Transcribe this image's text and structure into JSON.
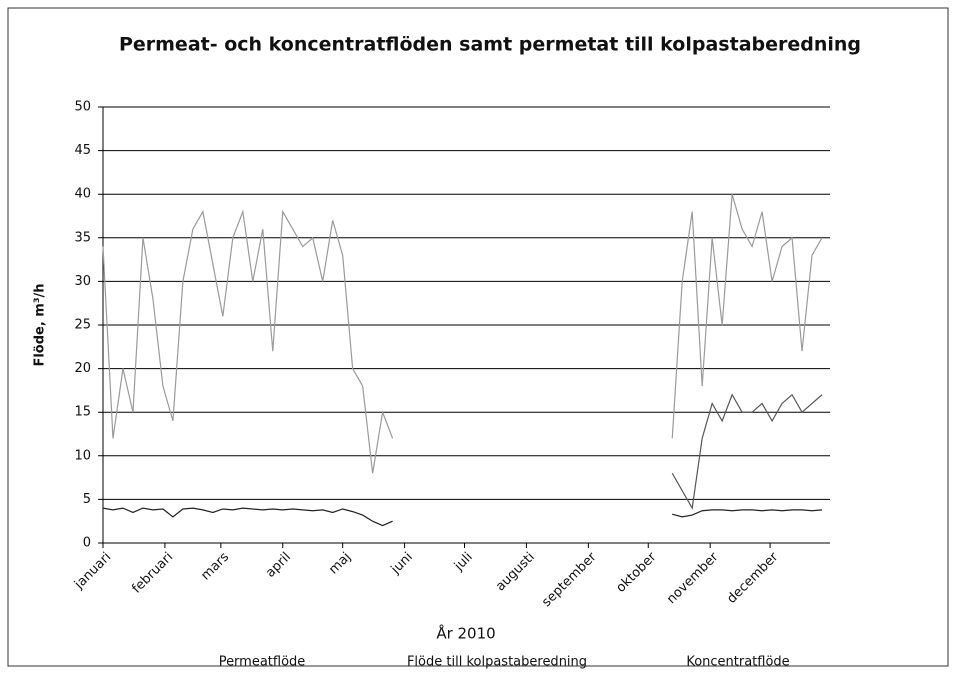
{
  "chart_data": {
    "type": "line",
    "title": "Permeat- och koncentratflöden samt permetat till kolpastaberedning",
    "x_label": "År 2010",
    "y_label": "Flöde, m³/h",
    "x": [
      1,
      6,
      11,
      16,
      21,
      26,
      31,
      36,
      41,
      46,
      51,
      56,
      61,
      66,
      71,
      76,
      81,
      86,
      91,
      96,
      101,
      106,
      111,
      116,
      121,
      126,
      131,
      136,
      141,
      146,
      151,
      156,
      161,
      166,
      171,
      176,
      181,
      186,
      191,
      196,
      201,
      206,
      211,
      216,
      221,
      226,
      231,
      236,
      241,
      246,
      251,
      256,
      261,
      266,
      271,
      276,
      281,
      286,
      291,
      296,
      301,
      306,
      311,
      316,
      321,
      326,
      331,
      336,
      341,
      346,
      351,
      356,
      361
    ],
    "xlim": [
      1,
      365
    ],
    "xticks": [
      {
        "value": 1,
        "label": "januari"
      },
      {
        "value": 32,
        "label": "februari"
      },
      {
        "value": 60,
        "label": "mars"
      },
      {
        "value": 91,
        "label": "april"
      },
      {
        "value": 121,
        "label": "maj"
      },
      {
        "value": 152,
        "label": "juni"
      },
      {
        "value": 182,
        "label": "juli"
      },
      {
        "value": 213,
        "label": "augusti"
      },
      {
        "value": 244,
        "label": "september"
      },
      {
        "value": 274,
        "label": "oktober"
      },
      {
        "value": 305,
        "label": "november"
      },
      {
        "value": 335,
        "label": "december"
      }
    ],
    "ylim": [
      0,
      50
    ],
    "yticks": [
      0,
      5,
      10,
      15,
      20,
      25,
      30,
      35,
      40,
      45,
      50
    ],
    "grid": true,
    "series": [
      {
        "name": "Permeatflöde",
        "color": "#9a9a9a",
        "values": [
          34,
          12,
          20,
          15,
          35,
          28,
          18,
          14,
          30,
          36,
          38,
          32,
          26,
          35,
          38,
          30,
          36,
          22,
          38,
          36,
          34,
          35,
          30,
          37,
          33,
          20,
          18,
          8,
          15,
          12,
          null,
          null,
          null,
          null,
          null,
          null,
          null,
          null,
          null,
          null,
          null,
          null,
          null,
          null,
          null,
          null,
          null,
          null,
          null,
          null,
          null,
          null,
          null,
          null,
          null,
          null,
          null,
          12,
          30,
          38,
          18,
          35,
          25,
          40,
          36,
          34,
          38,
          30,
          34,
          35,
          22,
          33,
          35
        ]
      },
      {
        "name": "Flöde till kolpastaberedning",
        "color": "#222222",
        "values": [
          4,
          3.8,
          4,
          3.5,
          4,
          3.8,
          3.9,
          3,
          3.9,
          4,
          3.8,
          3.5,
          3.9,
          3.8,
          4,
          3.9,
          3.8,
          3.9,
          3.8,
          3.9,
          3.8,
          3.7,
          3.8,
          3.5,
          3.9,
          3.6,
          3.2,
          2.5,
          2,
          2.5,
          null,
          null,
          null,
          null,
          null,
          null,
          null,
          null,
          null,
          null,
          null,
          null,
          null,
          null,
          null,
          null,
          null,
          null,
          null,
          null,
          null,
          null,
          null,
          null,
          null,
          null,
          null,
          3.3,
          3,
          3.2,
          3.7,
          3.8,
          3.8,
          3.7,
          3.8,
          3.8,
          3.7,
          3.8,
          3.7,
          3.8,
          3.8,
          3.7,
          3.8
        ]
      },
      {
        "name": "Koncentratflöde",
        "color": "#555555",
        "values": [
          null,
          null,
          null,
          null,
          null,
          null,
          null,
          null,
          null,
          null,
          null,
          null,
          null,
          null,
          null,
          null,
          null,
          null,
          null,
          null,
          null,
          null,
          null,
          null,
          null,
          null,
          null,
          null,
          null,
          null,
          null,
          null,
          null,
          null,
          null,
          null,
          null,
          null,
          null,
          null,
          null,
          null,
          null,
          null,
          null,
          null,
          null,
          null,
          null,
          null,
          null,
          null,
          null,
          null,
          null,
          null,
          null,
          8,
          6,
          4,
          12,
          16,
          14,
          17,
          15,
          15,
          16,
          14,
          16,
          17,
          15,
          16,
          17
        ]
      }
    ]
  }
}
